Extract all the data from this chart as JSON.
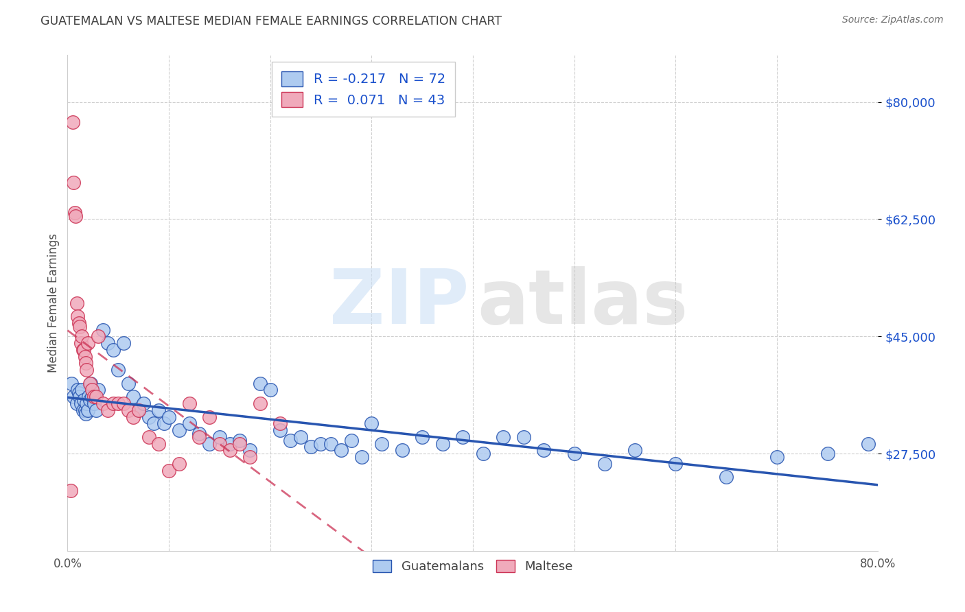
{
  "title": "GUATEMALAN VS MALTESE MEDIAN FEMALE EARNINGS CORRELATION CHART",
  "source": "Source: ZipAtlas.com",
  "ylabel": "Median Female Earnings",
  "xmin": 0.0,
  "xmax": 80.0,
  "ymin": 13000,
  "ymax": 87000,
  "blue_color": "#aecbf0",
  "pink_color": "#f0aabb",
  "blue_line_color": "#2855b0",
  "pink_line_color": "#cc3355",
  "R_blue": -0.217,
  "N_blue": 72,
  "R_pink": 0.071,
  "N_pink": 43,
  "legend_text_color": "#1a50cc",
  "title_color": "#404040",
  "guatemalans_x": [
    0.4,
    0.6,
    0.9,
    1.0,
    1.1,
    1.2,
    1.3,
    1.4,
    1.5,
    1.6,
    1.7,
    1.8,
    1.9,
    2.0,
    2.1,
    2.2,
    2.3,
    2.4,
    2.6,
    2.8,
    3.0,
    3.5,
    4.0,
    4.5,
    5.0,
    5.5,
    6.0,
    6.5,
    7.0,
    7.5,
    8.0,
    8.5,
    9.0,
    9.5,
    10.0,
    11.0,
    12.0,
    13.0,
    14.0,
    15.0,
    16.0,
    17.0,
    18.0,
    19.0,
    20.0,
    21.0,
    22.0,
    23.0,
    24.0,
    25.0,
    26.0,
    27.0,
    28.0,
    29.0,
    30.0,
    31.0,
    33.0,
    35.0,
    37.0,
    39.0,
    41.0,
    43.0,
    45.0,
    47.0,
    50.0,
    53.0,
    56.0,
    60.0,
    65.0,
    70.0,
    75.0,
    79.0
  ],
  "guatemalans_y": [
    38000,
    36000,
    35000,
    37000,
    36500,
    36000,
    35000,
    37000,
    34000,
    35500,
    34000,
    33500,
    35000,
    34000,
    36000,
    35500,
    38000,
    36000,
    35000,
    34000,
    37000,
    46000,
    44000,
    43000,
    40000,
    44000,
    38000,
    36000,
    34000,
    35000,
    33000,
    32000,
    34000,
    32000,
    33000,
    31000,
    32000,
    30500,
    29000,
    30000,
    29000,
    29500,
    28000,
    38000,
    37000,
    31000,
    29500,
    30000,
    28500,
    29000,
    29000,
    28000,
    29500,
    27000,
    32000,
    29000,
    28000,
    30000,
    29000,
    30000,
    27500,
    30000,
    30000,
    28000,
    27500,
    26000,
    28000,
    26000,
    24000,
    27000,
    27500,
    29000
  ],
  "maltese_x": [
    0.3,
    0.5,
    0.6,
    0.7,
    0.8,
    0.9,
    1.0,
    1.1,
    1.2,
    1.3,
    1.4,
    1.5,
    1.6,
    1.7,
    1.8,
    1.9,
    2.0,
    2.2,
    2.4,
    2.6,
    2.8,
    3.0,
    3.5,
    4.0,
    4.5,
    5.0,
    5.5,
    6.0,
    6.5,
    7.0,
    8.0,
    9.0,
    10.0,
    11.0,
    12.0,
    13.0,
    14.0,
    15.0,
    16.0,
    17.0,
    18.0,
    19.0,
    21.0
  ],
  "maltese_y": [
    22000,
    77000,
    68000,
    63500,
    63000,
    50000,
    48000,
    47000,
    46500,
    44000,
    45000,
    43000,
    43000,
    42000,
    41000,
    40000,
    44000,
    38000,
    37000,
    36000,
    36000,
    45000,
    35000,
    34000,
    35000,
    35000,
    35000,
    34000,
    33000,
    34000,
    30000,
    29000,
    25000,
    26000,
    35000,
    30000,
    33000,
    29000,
    28000,
    29000,
    27000,
    35000,
    32000
  ],
  "ytick_vals": [
    27500,
    45000,
    62500,
    80000
  ],
  "ytick_labels": [
    "$27,500",
    "$45,000",
    "$62,500",
    "$80,000"
  ],
  "grid_x": [
    10,
    20,
    30,
    40,
    50,
    60,
    70
  ],
  "watermark_zip_color": "#cce0f5",
  "watermark_atlas_color": "#c8c8c8"
}
